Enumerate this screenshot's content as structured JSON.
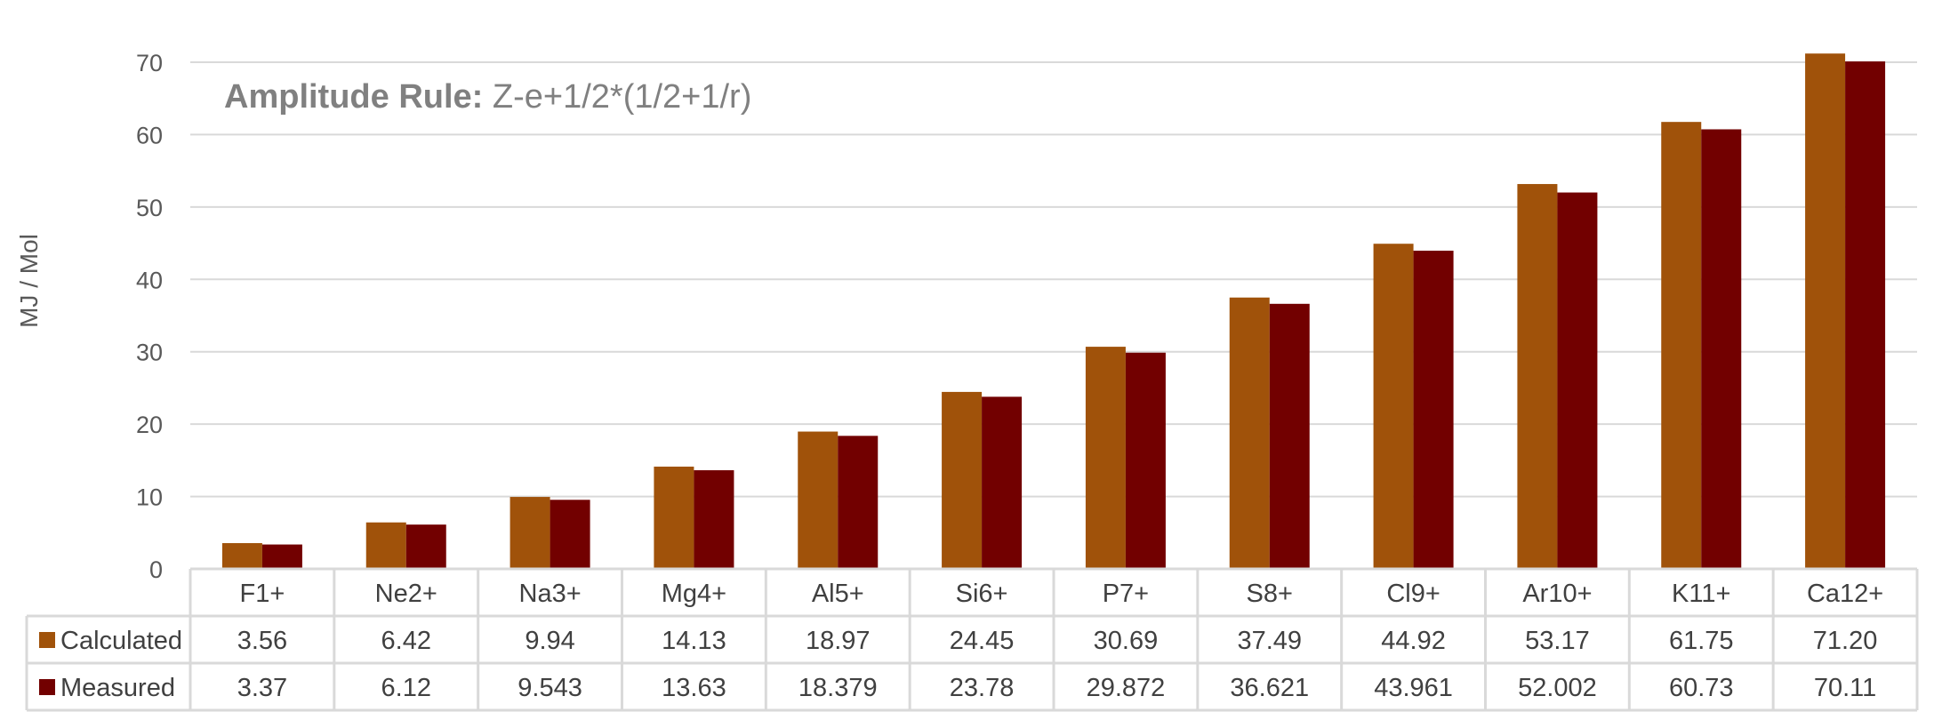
{
  "chart_data": {
    "type": "bar",
    "title_bold": "Amplitude Rule:",
    "title_rest": " Z-e+1/2*(1/2+1/r)",
    "ylabel": "MJ / Mol",
    "xlabel": "",
    "ylim": [
      0,
      70
    ],
    "yticks": [
      0,
      10,
      20,
      30,
      40,
      50,
      60,
      70
    ],
    "grid": true,
    "legend": "data-table",
    "categories": [
      "F1+",
      "Ne2+",
      "Na3+",
      "Mg4+",
      "Al5+",
      "Si6+",
      "P7+",
      "S8+",
      "Cl9+",
      "Ar10+",
      "K11+",
      "Ca12+"
    ],
    "series": [
      {
        "name": "Calculated",
        "color": "#A0520A",
        "values": [
          3.56,
          6.42,
          9.94,
          14.13,
          18.97,
          24.45,
          30.69,
          37.49,
          44.92,
          53.17,
          61.75,
          71.2
        ],
        "labels": [
          "3.56",
          "6.42",
          "9.94",
          "14.13",
          "18.97",
          "24.45",
          "30.69",
          "37.49",
          "44.92",
          "53.17",
          "61.75",
          "71.20"
        ]
      },
      {
        "name": "Measured",
        "color": "#720000",
        "values": [
          3.37,
          6.12,
          9.543,
          13.63,
          18.379,
          23.78,
          29.872,
          36.621,
          43.961,
          52.002,
          60.73,
          70.11
        ],
        "labels": [
          "3.37",
          "6.12",
          "9.543",
          "13.63",
          "18.379",
          "23.78",
          "29.872",
          "36.621",
          "43.961",
          "52.002",
          "60.73",
          "70.11"
        ]
      }
    ]
  }
}
